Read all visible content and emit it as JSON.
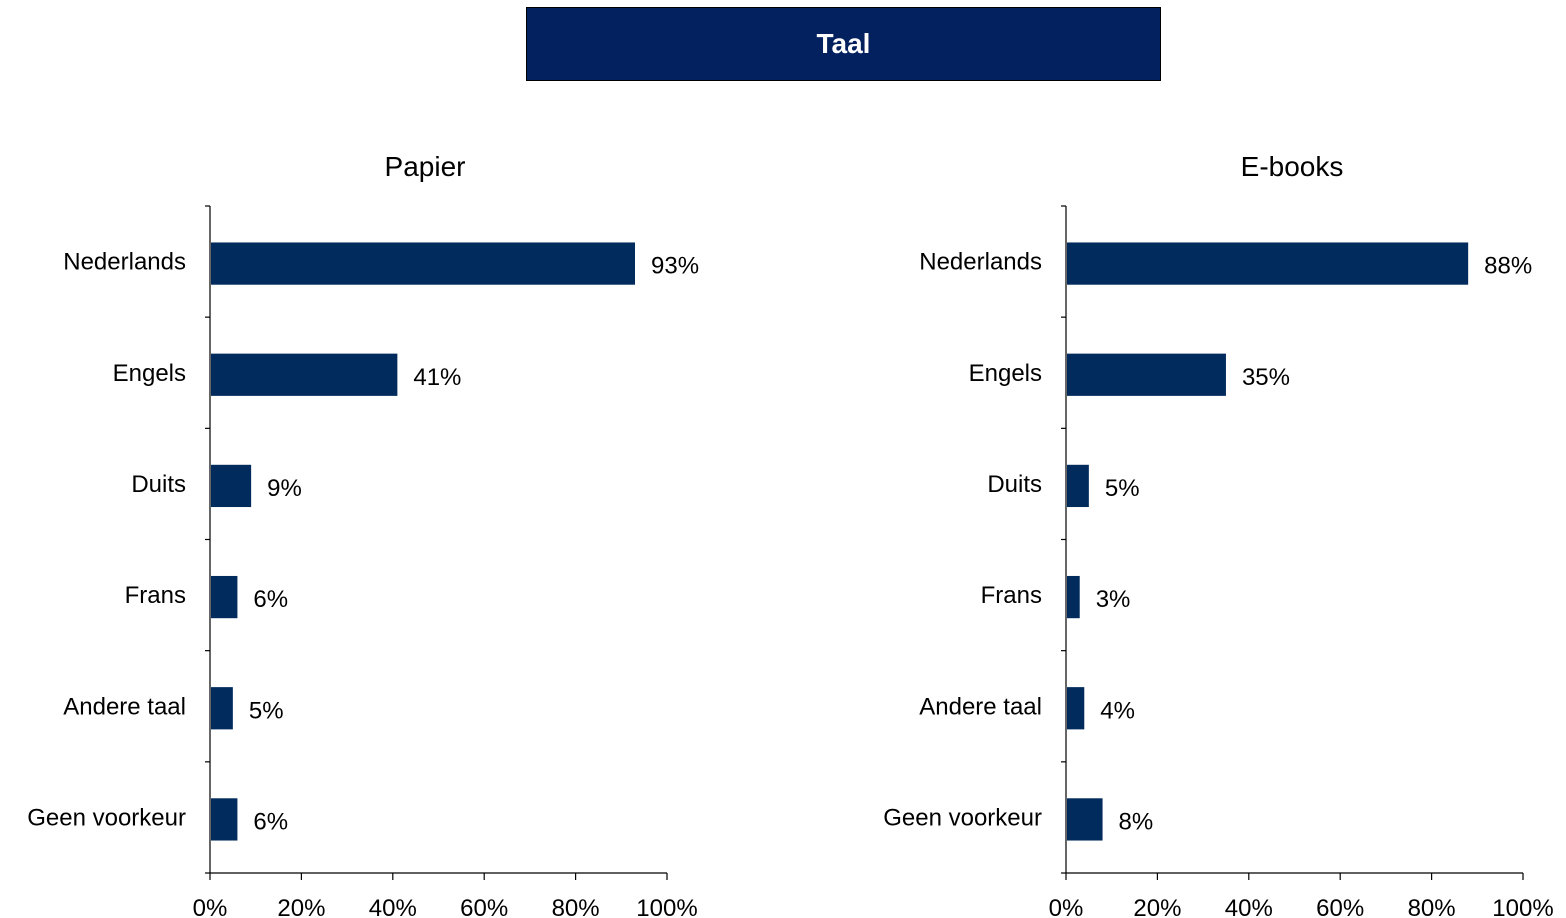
{
  "header": {
    "title": "Taal"
  },
  "colors": {
    "header_bg": "#03215e",
    "bar": "#002b5c"
  },
  "chart_data": [
    {
      "type": "bar",
      "orientation": "horizontal",
      "title": "Papier",
      "categories": [
        "Nederlands",
        "Engels",
        "Duits",
        "Frans",
        "Andere taal",
        "Geen voorkeur"
      ],
      "values": [
        93,
        41,
        9,
        6,
        5,
        6
      ],
      "data_labels": [
        "93%",
        "41%",
        "9%",
        "6%",
        "5%",
        "6%"
      ],
      "xlim": [
        0,
        100
      ],
      "x_ticks": [
        "0%",
        "20%",
        "40%",
        "60%",
        "80%",
        "100%"
      ],
      "grid": false,
      "legend": "none"
    },
    {
      "type": "bar",
      "orientation": "horizontal",
      "title": "E-books",
      "categories": [
        "Nederlands",
        "Engels",
        "Duits",
        "Frans",
        "Andere taal",
        "Geen voorkeur"
      ],
      "values": [
        88,
        35,
        5,
        3,
        4,
        8
      ],
      "data_labels": [
        "88%",
        "35%",
        "5%",
        "3%",
        "4%",
        "8%"
      ],
      "xlim": [
        0,
        100
      ],
      "x_ticks": [
        "0%",
        "20%",
        "40%",
        "60%",
        "80%",
        "100%"
      ],
      "grid": false,
      "legend": "none"
    }
  ]
}
